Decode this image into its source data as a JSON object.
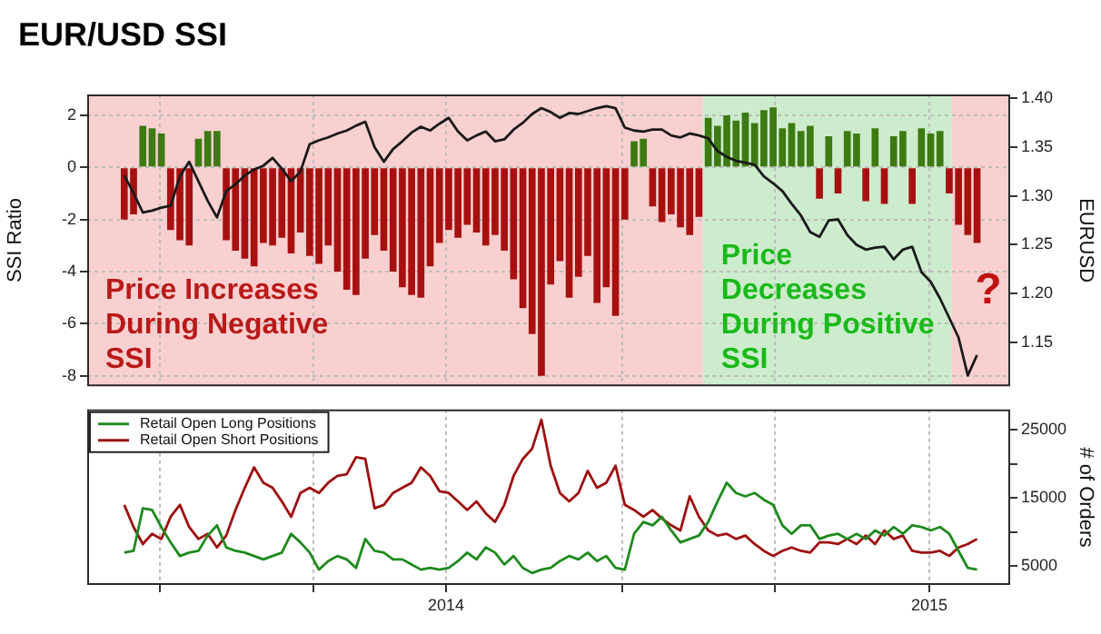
{
  "chart_data": [
    {
      "type": "bar",
      "title": "EUR/USD SSI",
      "ylabel": "SSI Ratio",
      "y2label": "EURUSD",
      "x": [
        "2013-05-03",
        "2013-05-10",
        "2013-05-17",
        "2013-05-24",
        "2013-05-31",
        "2013-06-07",
        "2013-06-14",
        "2013-06-21",
        "2013-06-28",
        "2013-07-05",
        "2013-07-12",
        "2013-07-19",
        "2013-07-26",
        "2013-08-02",
        "2013-08-09",
        "2013-08-16",
        "2013-08-23",
        "2013-08-30",
        "2013-09-06",
        "2013-09-13",
        "2013-09-20",
        "2013-09-27",
        "2013-10-04",
        "2013-10-11",
        "2013-10-18",
        "2013-10-25",
        "2013-11-01",
        "2013-11-08",
        "2013-11-15",
        "2013-11-22",
        "2013-11-29",
        "2013-12-06",
        "2013-12-13",
        "2013-12-20",
        "2013-12-27",
        "2014-01-03",
        "2014-01-10",
        "2014-01-17",
        "2014-01-24",
        "2014-01-31",
        "2014-02-07",
        "2014-02-14",
        "2014-02-21",
        "2014-02-28",
        "2014-03-07",
        "2014-03-14",
        "2014-03-21",
        "2014-03-28",
        "2014-04-04",
        "2014-04-11",
        "2014-04-18",
        "2014-04-25",
        "2014-05-02",
        "2014-05-09",
        "2014-05-16",
        "2014-05-23",
        "2014-05-30",
        "2014-06-06",
        "2014-06-13",
        "2014-06-20",
        "2014-06-27",
        "2014-07-04",
        "2014-07-11",
        "2014-07-18",
        "2014-07-25",
        "2014-08-01",
        "2014-08-08",
        "2014-08-15",
        "2014-08-22",
        "2014-08-29",
        "2014-09-05",
        "2014-09-12",
        "2014-09-19",
        "2014-09-26",
        "2014-10-03",
        "2014-10-10",
        "2014-10-17",
        "2014-10-24",
        "2014-10-31",
        "2014-11-07",
        "2014-11-14",
        "2014-11-21",
        "2014-11-28",
        "2014-12-05",
        "2014-12-12",
        "2014-12-19",
        "2014-12-26",
        "2015-01-02",
        "2015-01-09",
        "2015-01-16",
        "2015-01-23",
        "2015-01-30",
        "2015-02-06"
      ],
      "series": [
        {
          "type": "bar",
          "values": [
            -2.0,
            -1.8,
            1.6,
            1.5,
            1.3,
            -2.4,
            -2.8,
            -3.0,
            1.1,
            1.4,
            1.4,
            -2.8,
            -3.2,
            -3.5,
            -3.8,
            -2.9,
            -3.0,
            -2.7,
            -3.3,
            -2.5,
            -3.4,
            -3.7,
            -3.0,
            -4.0,
            -4.7,
            -4.9,
            -3.5,
            -2.6,
            -3.2,
            -4.0,
            -4.6,
            -4.9,
            -5.0,
            -3.8,
            -2.9,
            -2.4,
            -2.7,
            -2.2,
            -2.5,
            -3.0,
            -2.6,
            -3.2,
            -4.3,
            -5.4,
            -6.4,
            -8.0,
            -4.5,
            -3.6,
            -5.0,
            -4.2,
            -3.4,
            -5.2,
            -4.6,
            -5.7,
            -2.0,
            1.0,
            1.1,
            -1.5,
            -2.1,
            -1.8,
            -2.3,
            -2.6,
            -1.9,
            1.9,
            1.6,
            2.0,
            1.8,
            2.1,
            1.7,
            2.2,
            2.3,
            1.5,
            1.7,
            1.4,
            1.6,
            -1.2,
            1.2,
            -1.0,
            1.4,
            1.3,
            -1.3,
            1.5,
            -1.4,
            1.2,
            1.4,
            -1.4,
            1.5,
            1.3,
            1.4,
            -1.0,
            -2.2,
            -2.6,
            -2.9
          ],
          "colors": [
            "#a81010",
            "#a81010",
            "#3d7a12",
            "#3d7a12",
            "#3d7a12",
            "#a81010",
            "#a81010",
            "#a81010",
            "#3d7a12",
            "#3d7a12",
            "#3d7a12",
            "#a81010",
            "#a81010",
            "#a81010",
            "#a81010",
            "#a81010",
            "#a81010",
            "#a81010",
            "#a81010",
            "#a81010",
            "#a81010",
            "#a81010",
            "#a81010",
            "#a81010",
            "#a81010",
            "#a81010",
            "#a81010",
            "#a81010",
            "#a81010",
            "#a81010",
            "#a81010",
            "#a81010",
            "#a81010",
            "#a81010",
            "#a81010",
            "#a81010",
            "#a81010",
            "#a81010",
            "#a81010",
            "#a81010",
            "#a81010",
            "#a81010",
            "#a81010",
            "#a81010",
            "#a81010",
            "#a81010",
            "#a81010",
            "#a81010",
            "#a81010",
            "#a81010",
            "#a81010",
            "#a81010",
            "#a81010",
            "#a81010",
            "#a81010",
            "#3d7a12",
            "#3d7a12",
            "#a81010",
            "#a81010",
            "#a81010",
            "#a81010",
            "#a81010",
            "#a81010",
            "#3d7a12",
            "#3d7a12",
            "#3d7a12",
            "#3d7a12",
            "#3d7a12",
            "#3d7a12",
            "#3d7a12",
            "#3d7a12",
            "#3d7a12",
            "#3d7a12",
            "#3d7a12",
            "#3d7a12",
            "#a81010",
            "#3d7a12",
            "#a81010",
            "#3d7a12",
            "#3d7a12",
            "#a81010",
            "#3d7a12",
            "#a81010",
            "#3d7a12",
            "#3d7a12",
            "#a81010",
            "#3d7a12",
            "#3d7a12",
            "#3d7a12",
            "#a81010",
            "#a81010",
            "#a81010",
            "#a81010"
          ]
        },
        {
          "type": "line",
          "axis": "y2",
          "color": "#1a1a1a",
          "values": [
            1.321,
            1.303,
            1.283,
            1.285,
            1.288,
            1.29,
            1.32,
            1.335,
            1.315,
            1.295,
            1.278,
            1.305,
            1.312,
            1.321,
            1.327,
            1.331,
            1.339,
            1.328,
            1.315,
            1.325,
            1.353,
            1.357,
            1.36,
            1.364,
            1.367,
            1.372,
            1.376,
            1.35,
            1.335,
            1.348,
            1.356,
            1.365,
            1.371,
            1.367,
            1.374,
            1.38,
            1.366,
            1.357,
            1.362,
            1.366,
            1.356,
            1.358,
            1.368,
            1.375,
            1.384,
            1.39,
            1.386,
            1.38,
            1.385,
            1.384,
            1.387,
            1.39,
            1.392,
            1.39,
            1.37,
            1.367,
            1.366,
            1.368,
            1.368,
            1.362,
            1.36,
            1.364,
            1.362,
            1.359,
            1.346,
            1.34,
            1.336,
            1.334,
            1.332,
            1.32,
            1.313,
            1.305,
            1.292,
            1.28,
            1.263,
            1.258,
            1.275,
            1.276,
            1.26,
            1.25,
            1.245,
            1.247,
            1.248,
            1.235,
            1.245,
            1.248,
            1.222,
            1.212,
            1.195,
            1.175,
            1.155,
            1.116,
            1.137
          ]
        }
      ],
      "xlim": [
        "2013-04-05",
        "2015-03-03"
      ],
      "xticks": [
        {
          "value": "2013-05-30",
          "label": null
        },
        {
          "value": "2013-09-23",
          "label": null
        },
        {
          "value": "2014-01-01",
          "label": null
        },
        {
          "value": "2014-05-14",
          "label": null
        },
        {
          "value": "2014-09-06",
          "label": null
        },
        {
          "value": "2015-01-01",
          "label": null
        }
      ],
      "ylim": [
        -8.4,
        2.8
      ],
      "yticks": [
        -8,
        -6,
        -4,
        -2,
        0,
        2
      ],
      "y2lim": [
        1.105,
        1.404
      ],
      "y2ticks": [
        1.15,
        {
          "value": 1.2,
          "label": "1.20"
        },
        1.25,
        {
          "value": 1.3,
          "label": "1.30"
        },
        1.35,
        {
          "value": 1.4,
          "label": "1.40"
        }
      ],
      "bands": [
        {
          "axis": "x",
          "from": "2013-04-05",
          "to": "2014-07-14",
          "color": "#f9d0d0",
          "label": "Price Increases\nDuring Negative\nSSI"
        },
        {
          "axis": "x",
          "from": "2014-07-14",
          "to": "2015-01-18",
          "color": "#cdeccd",
          "label": "Price\nDecreases\nDuring Positive\nSSI"
        },
        {
          "axis": "x",
          "from": "2015-01-18",
          "to": "2015-03-03",
          "color": "#f9d0d0"
        }
      ],
      "annotations": [
        "?"
      ],
      "grid": true,
      "tick_labels": "y"
    },
    {
      "type": "line",
      "y2label": "# of Orders",
      "x": [
        "2013-05-03",
        "2013-05-10",
        "2013-05-17",
        "2013-05-24",
        "2013-05-31",
        "2013-06-07",
        "2013-06-14",
        "2013-06-21",
        "2013-06-28",
        "2013-07-05",
        "2013-07-12",
        "2013-07-19",
        "2013-07-26",
        "2013-08-02",
        "2013-08-09",
        "2013-08-16",
        "2013-08-23",
        "2013-08-30",
        "2013-09-06",
        "2013-09-13",
        "2013-09-20",
        "2013-09-27",
        "2013-10-04",
        "2013-10-11",
        "2013-10-18",
        "2013-10-25",
        "2013-11-01",
        "2013-11-08",
        "2013-11-15",
        "2013-11-22",
        "2013-11-29",
        "2013-12-06",
        "2013-12-13",
        "2013-12-20",
        "2013-12-27",
        "2014-01-03",
        "2014-01-10",
        "2014-01-17",
        "2014-01-24",
        "2014-01-31",
        "2014-02-07",
        "2014-02-14",
        "2014-02-21",
        "2014-02-28",
        "2014-03-07",
        "2014-03-14",
        "2014-03-21",
        "2014-03-28",
        "2014-04-04",
        "2014-04-11",
        "2014-04-18",
        "2014-04-25",
        "2014-05-02",
        "2014-05-09",
        "2014-05-16",
        "2014-05-23",
        "2014-05-30",
        "2014-06-06",
        "2014-06-13",
        "2014-06-20",
        "2014-06-27",
        "2014-07-04",
        "2014-07-11",
        "2014-07-18",
        "2014-07-25",
        "2014-08-01",
        "2014-08-08",
        "2014-08-15",
        "2014-08-22",
        "2014-08-29",
        "2014-09-05",
        "2014-09-12",
        "2014-09-19",
        "2014-09-26",
        "2014-10-03",
        "2014-10-10",
        "2014-10-17",
        "2014-10-24",
        "2014-10-31",
        "2014-11-07",
        "2014-11-14",
        "2014-11-21",
        "2014-11-28",
        "2014-12-05",
        "2014-12-12",
        "2014-12-19",
        "2014-12-26",
        "2015-01-02",
        "2015-01-09",
        "2015-01-16",
        "2015-01-23",
        "2015-01-30",
        "2015-02-06"
      ],
      "series": [
        {
          "name": "Retail Open Long Positions",
          "axis": "y2",
          "color": "#1e8a1e",
          "values": [
            7000,
            7250,
            13500,
            13250,
            10750,
            8500,
            6500,
            7000,
            7250,
            9500,
            11000,
            7750,
            7250,
            7000,
            6500,
            6000,
            6500,
            7000,
            9750,
            8500,
            7000,
            4500,
            5750,
            6500,
            6000,
            4750,
            9000,
            7250,
            7000,
            6000,
            6000,
            5250,
            4500,
            4750,
            4500,
            4750,
            5750,
            7000,
            6000,
            7750,
            7000,
            5250,
            6500,
            4750,
            4000,
            4500,
            4750,
            5750,
            6500,
            6000,
            7000,
            5750,
            6500,
            4750,
            4500,
            9750,
            11500,
            11000,
            12250,
            10250,
            8500,
            9000,
            9500,
            11500,
            14500,
            17250,
            15750,
            15250,
            15750,
            14750,
            14000,
            11000,
            9750,
            11000,
            11000,
            9000,
            9500,
            9750,
            9000,
            9750,
            9000,
            10250,
            9500,
            10750,
            9750,
            11000,
            10750,
            10250,
            10750,
            9750,
            7250,
            4750,
            4500
          ]
        },
        {
          "name": "Retail Open Short Positions",
          "axis": "y2",
          "color": "#9e1010",
          "values": [
            14000,
            10750,
            8250,
            9750,
            9000,
            12250,
            14000,
            10750,
            9000,
            9750,
            7750,
            9500,
            13250,
            16500,
            19500,
            17250,
            16500,
            14500,
            12250,
            15750,
            16500,
            15750,
            17250,
            18250,
            18500,
            21000,
            20750,
            13500,
            14000,
            15750,
            16500,
            17250,
            19500,
            18250,
            16000,
            15750,
            14500,
            13250,
            14500,
            12750,
            11500,
            14000,
            18250,
            20750,
            22250,
            26500,
            19750,
            15750,
            14500,
            15750,
            19000,
            16500,
            17250,
            19750,
            14000,
            13250,
            12250,
            13250,
            12000,
            11000,
            10250,
            15250,
            12250,
            10250,
            9500,
            9750,
            9000,
            9500,
            8250,
            7250,
            6500,
            7250,
            7750,
            7250,
            7000,
            8500,
            8500,
            8250,
            9000,
            8250,
            9500,
            8250,
            10250,
            9000,
            9500,
            7250,
            7000,
            7000,
            7250,
            6500,
            7750,
            8250,
            9000
          ]
        }
      ],
      "xlim": [
        "2013-04-05",
        "2015-03-03"
      ],
      "xticks": [
        {
          "value": "2013-05-30",
          "label": null
        },
        {
          "value": "2013-09-23",
          "label": null
        },
        {
          "value": "2014-01-01",
          "label": "2014"
        },
        {
          "value": "2014-05-14",
          "label": null
        },
        {
          "value": "2014-09-06",
          "label": null
        },
        {
          "value": "2015-01-01",
          "label": "2015"
        }
      ],
      "y2lim": [
        2250,
        28000
      ],
      "y2ticks": [
        5000,
        {
          "value": 10000,
          "label": null
        },
        15000,
        {
          "value": 20000,
          "label": null
        },
        25000
      ],
      "grid": true,
      "legend": "top left"
    }
  ]
}
